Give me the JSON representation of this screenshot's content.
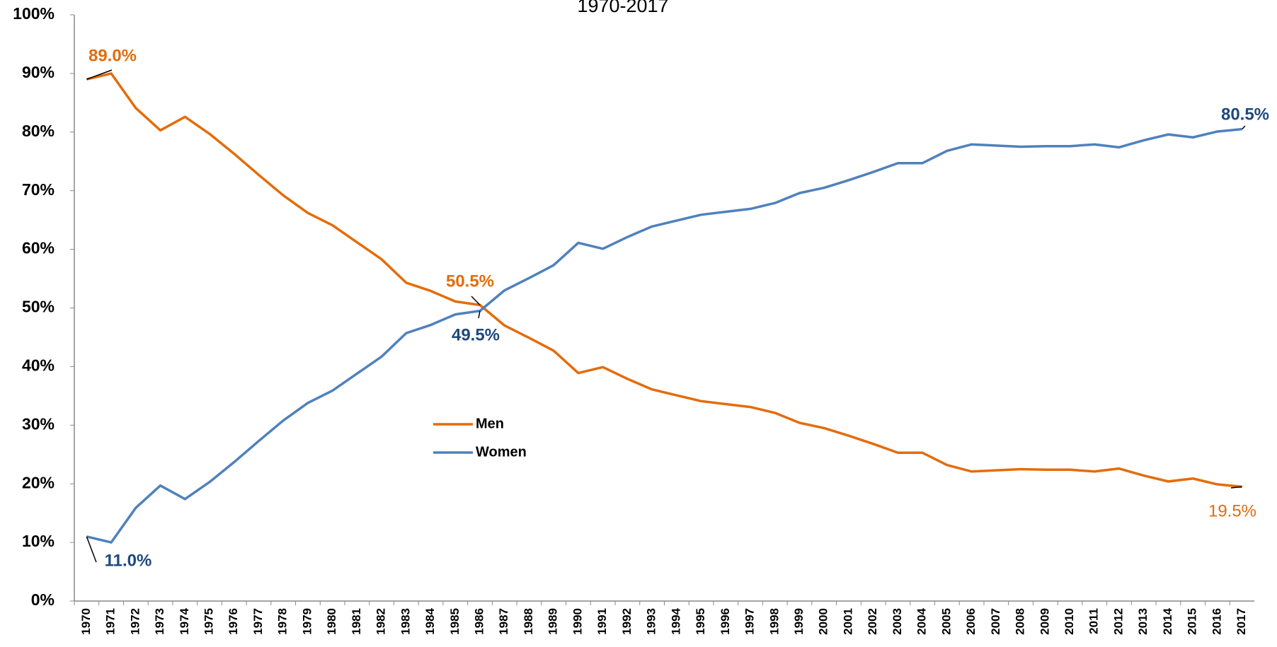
{
  "chart_data": {
    "type": "line",
    "subtitle": "1970-2017",
    "categories": [
      "1970",
      "1971",
      "1972",
      "1973",
      "1974",
      "1975",
      "1976",
      "1977",
      "1978",
      "1979",
      "1980",
      "1981",
      "1982",
      "1983",
      "1984",
      "1985",
      "1986",
      "1987",
      "1988",
      "1989",
      "1990",
      "1991",
      "1992",
      "1993",
      "1994",
      "1995",
      "1996",
      "1997",
      "1998",
      "1999",
      "2000",
      "2001",
      "2002",
      "2003",
      "2004",
      "2005",
      "2006",
      "2007",
      "2008",
      "2009",
      "2010",
      "2011",
      "2012",
      "2013",
      "2014",
      "2015",
      "2016",
      "2017"
    ],
    "series": [
      {
        "name": "Men",
        "color": "#e46c0a",
        "label_color": "#e46c0a",
        "values": [
          89.0,
          90.0,
          84.1,
          80.3,
          82.6,
          79.7,
          76.3,
          72.7,
          69.2,
          66.2,
          64.1,
          61.2,
          58.3,
          54.3,
          52.9,
          51.1,
          50.5,
          47.0,
          44.9,
          42.7,
          38.9,
          39.9,
          37.9,
          36.1,
          35.1,
          34.1,
          33.6,
          33.1,
          32.1,
          30.4,
          29.5,
          28.2,
          26.8,
          25.3,
          25.3,
          23.2,
          22.1,
          22.3,
          22.5,
          22.4,
          22.4,
          22.1,
          22.6,
          21.4,
          20.4,
          20.9,
          19.9,
          19.5
        ],
        "value_labels": [
          "89.0%",
          null,
          null,
          null,
          null,
          null,
          null,
          null,
          null,
          null,
          null,
          null,
          null,
          null,
          null,
          null,
          "50.5%",
          null,
          null,
          null,
          null,
          null,
          null,
          null,
          null,
          null,
          null,
          null,
          null,
          null,
          null,
          null,
          null,
          null,
          null,
          null,
          null,
          null,
          null,
          null,
          null,
          null,
          null,
          null,
          null,
          null,
          null,
          "19.5%"
        ]
      },
      {
        "name": "Women",
        "color": "#4f81bd",
        "label_color": "#1f497d",
        "values": [
          11.0,
          10.0,
          15.9,
          19.7,
          17.4,
          20.3,
          23.7,
          27.3,
          30.8,
          33.8,
          35.9,
          38.8,
          41.7,
          45.7,
          47.1,
          48.9,
          49.5,
          53.0,
          55.1,
          57.3,
          61.1,
          60.1,
          62.1,
          63.9,
          64.9,
          65.9,
          66.4,
          66.9,
          67.9,
          69.6,
          70.5,
          71.8,
          73.2,
          74.7,
          74.7,
          76.8,
          77.9,
          77.7,
          77.5,
          77.6,
          77.6,
          77.9,
          77.4,
          78.6,
          79.6,
          79.1,
          80.1,
          80.5
        ],
        "value_labels": [
          "11.0%",
          null,
          null,
          null,
          null,
          null,
          null,
          null,
          null,
          null,
          null,
          null,
          null,
          null,
          null,
          null,
          "49.5%",
          null,
          null,
          null,
          null,
          null,
          null,
          null,
          null,
          null,
          null,
          null,
          null,
          null,
          null,
          null,
          null,
          null,
          null,
          null,
          null,
          null,
          null,
          null,
          null,
          null,
          null,
          null,
          null,
          null,
          null,
          "80.5%"
        ]
      }
    ],
    "ylim": [
      0,
      100
    ],
    "yticks": [
      {
        "value": 0,
        "label": "0%"
      },
      {
        "value": 10,
        "label": "10%"
      },
      {
        "value": 20,
        "label": "20%"
      },
      {
        "value": 30,
        "label": "30%"
      },
      {
        "value": 40,
        "label": "40%"
      },
      {
        "value": 50,
        "label": "50%"
      },
      {
        "value": 60,
        "label": "60%"
      },
      {
        "value": 70,
        "label": "70%"
      },
      {
        "value": 80,
        "label": "80%"
      },
      {
        "value": 90,
        "label": "90%"
      },
      {
        "value": 100,
        "label": "100%"
      }
    ],
    "grid": false
  }
}
